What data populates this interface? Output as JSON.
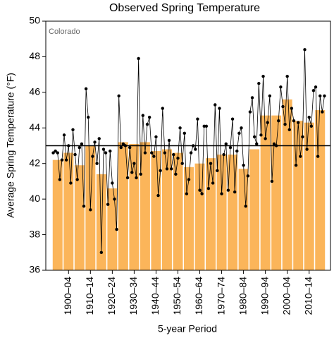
{
  "chart_data": {
    "type": "bar",
    "title": "Observed Spring Temperature",
    "annotation": "Colorado",
    "ylabel": "Average Spring Temperature (°F)",
    "xlabel": "5-year Period",
    "categories": [
      null,
      "1900–04",
      null,
      "1910–14",
      null,
      "1920–24",
      null,
      "1930–34",
      null,
      "1940–44",
      null,
      "1950–54",
      null,
      "1960–64",
      null,
      "1970–74",
      null,
      "1980–84",
      null,
      "1990–94",
      null,
      "2000–04",
      null,
      "2010–14",
      null
    ],
    "values": [
      42.2,
      42.6,
      41.9,
      43.0,
      41.4,
      40.6,
      43.2,
      43.1,
      43.2,
      42.7,
      42.8,
      42.6,
      41.8,
      42.0,
      42.3,
      42.5,
      42.5,
      41.7,
      42.8,
      44.7,
      44.7,
      45.6,
      44.4,
      44.3,
      45.0
    ],
    "color": "#fbb55a",
    "average": 43.0,
    "xlim": [
      1895,
      2020
    ],
    "ylim": [
      36,
      50
    ],
    "yticks": [
      36,
      38,
      40,
      42,
      44,
      46,
      48,
      50
    ],
    "annual": {
      "type": "line",
      "color": "#000000",
      "x": [
        1895,
        1896,
        1897,
        1898,
        1899,
        1900,
        1901,
        1902,
        1903,
        1904,
        1905,
        1906,
        1907,
        1908,
        1909,
        1910,
        1911,
        1912,
        1913,
        1914,
        1915,
        1916,
        1917,
        1918,
        1919,
        1920,
        1921,
        1922,
        1923,
        1924,
        1925,
        1926,
        1927,
        1928,
        1929,
        1930,
        1931,
        1932,
        1933,
        1934,
        1935,
        1936,
        1937,
        1938,
        1939,
        1940,
        1941,
        1942,
        1943,
        1944,
        1945,
        1946,
        1947,
        1948,
        1949,
        1950,
        1951,
        1952,
        1953,
        1954,
        1955,
        1956,
        1957,
        1958,
        1959,
        1960,
        1961,
        1962,
        1963,
        1964,
        1965,
        1966,
        1967,
        1968,
        1969,
        1970,
        1971,
        1972,
        1973,
        1974,
        1975,
        1976,
        1977,
        1978,
        1979,
        1980,
        1981,
        1982,
        1983,
        1984,
        1985,
        1986,
        1987,
        1988,
        1989,
        1990,
        1991,
        1992,
        1993,
        1994,
        1995,
        1996,
        1997,
        1998,
        1999,
        2000,
        2001,
        2002,
        2003,
        2004,
        2005,
        2006,
        2007,
        2008,
        2009,
        2010,
        2011,
        2012,
        2013,
        2014,
        2015,
        2016,
        2017,
        2018,
        2019
      ],
      "values": [
        42.6,
        42.7,
        42.6,
        41.1,
        42.2,
        43.6,
        42.2,
        43.0,
        40.9,
        43.9,
        42.5,
        41.1,
        42.9,
        43.1,
        39.6,
        46.2,
        44.6,
        39.4,
        42.4,
        43.2,
        42.0,
        43.4,
        37.0,
        42.8,
        42.6,
        39.7,
        42.7,
        40.9,
        40.0,
        38.3,
        45.8,
        42.9,
        43.1,
        43.0,
        41.2,
        42.9,
        41.5,
        42.0,
        41.2,
        47.9,
        41.4,
        44.7,
        42.6,
        44.2,
        44.6,
        42.6,
        42.4,
        43.5,
        40.2,
        41.6,
        45.1,
        42.6,
        41.7,
        43.3,
        41.7,
        42.5,
        41.4,
        42.3,
        44.0,
        42.0,
        43.7,
        40.3,
        41.1,
        42.6,
        43.0,
        42.8,
        44.5,
        40.5,
        40.3,
        44.1,
        44.1,
        40.6,
        42.0,
        40.9,
        45.3,
        41.6,
        45.1,
        40.3,
        42.5,
        43.1,
        40.5,
        42.9,
        44.5,
        40.4,
        42.7,
        43.7,
        44.0,
        41.9,
        39.6,
        41.3,
        44.9,
        45.7,
        43.5,
        43.1,
        46.5,
        43.6,
        46.9,
        43.4,
        44.3,
        45.8,
        41.0,
        43.1,
        43.0,
        44.4,
        46.3,
        45.2,
        44.2,
        46.9,
        43.9,
        45.1,
        44.4,
        41.9,
        44.3,
        42.4,
        43.5,
        48.4,
        42.8,
        44.6,
        44.1,
        46.1,
        46.3,
        42.4,
        45.8,
        44.9,
        45.8
      ]
    }
  }
}
